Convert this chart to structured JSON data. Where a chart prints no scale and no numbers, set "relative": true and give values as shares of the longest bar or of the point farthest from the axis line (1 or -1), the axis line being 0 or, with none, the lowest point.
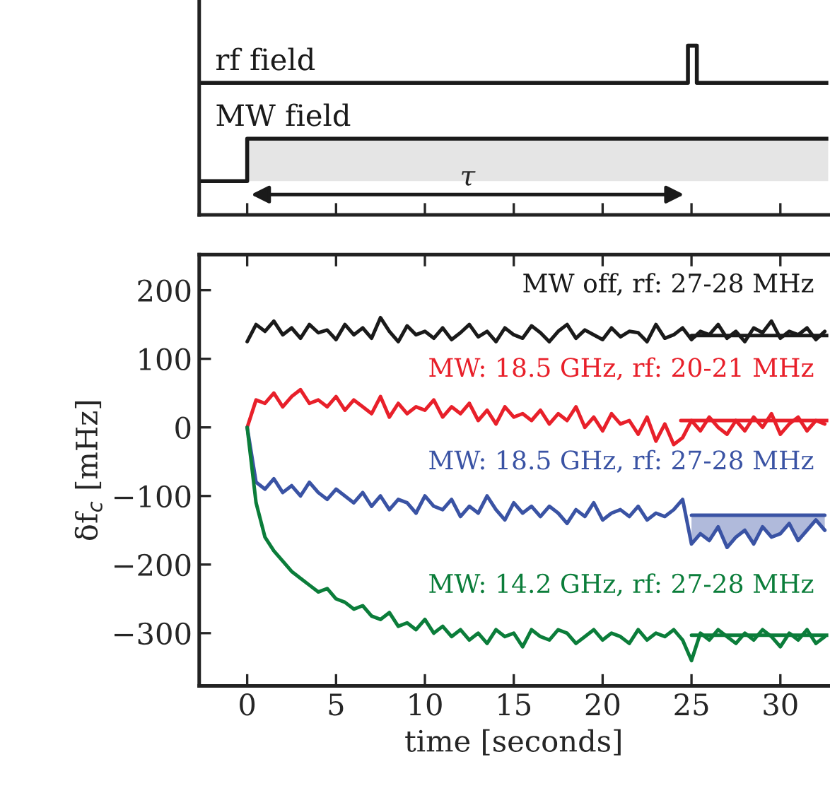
{
  "chart_data": [
    {
      "type": "step",
      "relative": true,
      "xlim": [
        -2.7,
        32.7
      ],
      "xticks": [
        0,
        5,
        10,
        15,
        20,
        25,
        30
      ],
      "tick_labels": false,
      "annotations": [
        "τ"
      ],
      "series": [
        {
          "name": "rf field",
          "color": "#1a1a1a",
          "x": [
            -2.7,
            24.8,
            25.3,
            32.7
          ],
          "values": [
            0.78,
            1,
            0.78,
            0.78
          ]
        },
        {
          "name": "MW field",
          "color": "#1a1a1a",
          "x": [
            -2.7,
            0,
            32.7
          ],
          "values": [
            0.2,
            0.45,
            0.45
          ]
        },
        {
          "type": "area",
          "color": "#e5e5e5",
          "x": [
            0,
            32.7
          ],
          "values": [
            0.45,
            0.45
          ]
        }
      ]
    },
    {
      "type": "line",
      "xlabel": "time [seconds]",
      "ylabel": "δf$_{c}$ [mHz]",
      "xlim": [
        -2.7,
        32.7
      ],
      "xticks": [
        0,
        5,
        10,
        15,
        20,
        25,
        30
      ],
      "ylim": [
        -377,
        252
      ],
      "yticks": [
        {
          "value": -300,
          "label": "−300"
        },
        {
          "value": -200,
          "label": "−200"
        },
        {
          "value": -100,
          "label": "−100"
        },
        0,
        100,
        200
      ],
      "x": [
        0,
        0.5,
        1,
        1.5,
        2,
        2.5,
        3,
        3.5,
        4,
        4.5,
        5,
        5.5,
        6,
        6.5,
        7,
        7.5,
        8,
        8.5,
        9,
        9.5,
        10,
        10.5,
        11,
        11.5,
        12,
        12.5,
        13,
        13.5,
        14,
        14.5,
        15,
        15.5,
        16,
        16.5,
        17,
        17.5,
        18,
        18.5,
        19,
        19.5,
        20,
        20.5,
        21,
        21.5,
        22,
        22.5,
        23,
        23.5,
        24,
        24.5,
        25,
        25.5,
        26,
        26.5,
        27,
        27.5,
        28,
        28.5,
        29,
        29.5,
        30,
        30.5,
        31,
        31.5,
        32,
        32.5
      ],
      "series": [
        {
          "name": "MW off, rf: 27-28 MHz",
          "color": "#1a1a1a",
          "values": [
            125,
            150,
            140,
            155,
            135,
            145,
            130,
            150,
            138,
            142,
            128,
            150,
            135,
            145,
            130,
            160,
            140,
            125,
            148,
            135,
            140,
            130,
            145,
            128,
            138,
            150,
            132,
            140,
            125,
            145,
            135,
            130,
            148,
            138,
            125,
            140,
            150,
            130,
            142,
            135,
            128,
            145,
            132,
            140,
            138,
            125,
            150,
            130,
            135,
            145,
            128,
            140,
            135,
            150,
            130,
            140,
            125,
            145,
            138,
            155,
            130,
            140,
            135,
            145,
            128,
            140
          ]
        },
        {
          "name": "MW: 18.5 GHz, rf: 20-21 MHz",
          "color": "#e8202a",
          "values": [
            0,
            40,
            35,
            50,
            30,
            45,
            55,
            35,
            40,
            30,
            45,
            25,
            40,
            30,
            20,
            45,
            15,
            35,
            20,
            30,
            25,
            40,
            15,
            30,
            20,
            35,
            10,
            25,
            5,
            30,
            15,
            20,
            10,
            25,
            5,
            20,
            10,
            30,
            0,
            15,
            -5,
            20,
            5,
            10,
            -10,
            15,
            -20,
            5,
            -25,
            -15,
            10,
            -5,
            15,
            0,
            -10,
            10,
            -5,
            15,
            0,
            20,
            -10,
            5,
            15,
            -5,
            10,
            5
          ]
        },
        {
          "name": "MW: 18.5 GHz, rf: 27-28 MHz",
          "color": "#3a53a4",
          "values": [
            0,
            -80,
            -90,
            -75,
            -95,
            -85,
            -100,
            -80,
            -95,
            -105,
            -90,
            -100,
            -110,
            -95,
            -115,
            -100,
            -120,
            -105,
            -110,
            -125,
            -100,
            -115,
            -120,
            -105,
            -130,
            -115,
            -125,
            -100,
            -120,
            -135,
            -110,
            -125,
            -115,
            -130,
            -115,
            -125,
            -140,
            -120,
            -130,
            -110,
            -135,
            -125,
            -120,
            -130,
            -115,
            -135,
            -125,
            -130,
            -120,
            -105,
            -170,
            -155,
            -165,
            -145,
            -175,
            -160,
            -150,
            -170,
            -145,
            -160,
            -155,
            -140,
            -165,
            -150,
            -135,
            -150
          ]
        },
        {
          "name": "MW: 14.2 GHz, rf: 27-28 MHz",
          "color": "#0b7d3a",
          "values": [
            0,
            -110,
            -160,
            -180,
            -195,
            -210,
            -220,
            -230,
            -240,
            -235,
            -250,
            -255,
            -265,
            -260,
            -275,
            -280,
            -270,
            -290,
            -285,
            -295,
            -280,
            -300,
            -290,
            -305,
            -295,
            -310,
            -300,
            -315,
            -295,
            -305,
            -300,
            -320,
            -295,
            -305,
            -310,
            -295,
            -300,
            -315,
            -305,
            -295,
            -310,
            -300,
            -305,
            -315,
            -295,
            -310,
            -300,
            -305,
            -295,
            -310,
            -340,
            -300,
            -310,
            -295,
            -305,
            -315,
            -300,
            -310,
            -295,
            -305,
            -320,
            -300,
            -310,
            -295,
            -315,
            -305
          ]
        },
        {
          "type": "line",
          "color": "#1a1a1a",
          "x": [
            25,
            32.7
          ],
          "values": [
            134,
            134
          ]
        },
        {
          "type": "line",
          "color": "#e8202a",
          "x": [
            24.4,
            32.7
          ],
          "values": [
            10,
            10
          ]
        },
        {
          "type": "line",
          "color": "#3a53a4",
          "x": [
            25,
            25.5,
            26,
            26.5,
            27,
            27.5,
            28,
            28.5,
            29,
            29.5,
            30,
            30.5,
            31,
            31.5,
            32,
            32.5
          ],
          "values": [
            -128,
            -128,
            -128,
            -128,
            -128,
            -128,
            -128,
            -128,
            -128,
            -128,
            -128,
            -128,
            -128,
            -128,
            -128,
            -128
          ],
          "lower": [
            -170,
            -155,
            -165,
            -145,
            -175,
            -160,
            -150,
            -170,
            -145,
            -160,
            -155,
            -140,
            -165,
            -150,
            -135,
            -150
          ],
          "upper": [
            -128,
            -128,
            -128,
            -128,
            -128,
            -128,
            -128,
            -128,
            -128,
            -128,
            -128,
            -128,
            -128,
            -128,
            -128,
            -128
          ]
        },
        {
          "type": "line",
          "color": "#0b7d3a",
          "x": [
            25,
            32.7
          ],
          "values": [
            -303,
            -303
          ]
        }
      ]
    }
  ]
}
